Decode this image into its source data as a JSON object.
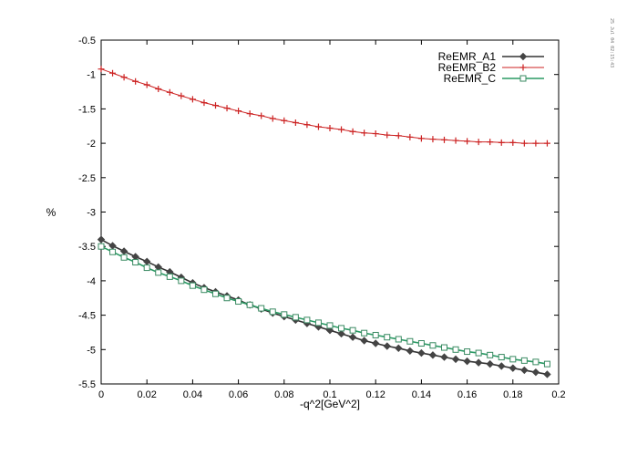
{
  "stamp": "25 Jul 04 02:15:43",
  "colors": {
    "A1_line": "#333333",
    "A1_marker": "#444444",
    "B2": "#cc2222",
    "C_line": "#2a9a64",
    "C_marker": "#3a8a62",
    "axis": "#000000"
  },
  "chart_data": {
    "type": "line",
    "title": "",
    "xlabel": "-q^2[GeV^2]",
    "ylabel": "%",
    "xlim": [
      0,
      0.2
    ],
    "ylim": [
      -5.5,
      -0.5
    ],
    "xticks": [
      "0",
      "0.02",
      "0.04",
      "0.06",
      "0.08",
      "0.1",
      "0.12",
      "0.14",
      "0.16",
      "0.18",
      "0.2"
    ],
    "yticks": [
      "-0.5",
      "-1",
      "-1.5",
      "-2",
      "-2.5",
      "-3",
      "-3.5",
      "-4",
      "-4.5",
      "-5",
      "-5.5"
    ],
    "grid": false,
    "legend_position": "top-right",
    "x": [
      0,
      0.005,
      0.01,
      0.015,
      0.02,
      0.025,
      0.03,
      0.035,
      0.04,
      0.045,
      0.05,
      0.055,
      0.06,
      0.065,
      0.07,
      0.075,
      0.08,
      0.085,
      0.09,
      0.095,
      0.1,
      0.105,
      0.11,
      0.115,
      0.12,
      0.125,
      0.13,
      0.135,
      0.14,
      0.145,
      0.15,
      0.155,
      0.16,
      0.165,
      0.17,
      0.175,
      0.18,
      0.185,
      0.19,
      0.195
    ],
    "series": [
      {
        "name": "ReEMR_A1",
        "marker": "diamond",
        "values": [
          -3.4,
          -3.49,
          -3.57,
          -3.65,
          -3.72,
          -3.8,
          -3.87,
          -3.95,
          -4.03,
          -4.1,
          -4.16,
          -4.22,
          -4.28,
          -4.35,
          -4.41,
          -4.47,
          -4.52,
          -4.57,
          -4.62,
          -4.67,
          -4.72,
          -4.77,
          -4.82,
          -4.87,
          -4.91,
          -4.95,
          -4.98,
          -5.02,
          -5.05,
          -5.08,
          -5.11,
          -5.14,
          -5.17,
          -5.19,
          -5.21,
          -5.24,
          -5.27,
          -5.3,
          -5.33,
          -5.36
        ]
      },
      {
        "name": "ReEMR_B2",
        "marker": "plus",
        "values": [
          -0.92,
          -0.98,
          -1.04,
          -1.1,
          -1.15,
          -1.21,
          -1.26,
          -1.31,
          -1.36,
          -1.41,
          -1.45,
          -1.49,
          -1.53,
          -1.57,
          -1.6,
          -1.64,
          -1.67,
          -1.7,
          -1.73,
          -1.76,
          -1.78,
          -1.8,
          -1.83,
          -1.85,
          -1.86,
          -1.88,
          -1.89,
          -1.91,
          -1.93,
          -1.94,
          -1.95,
          -1.96,
          -1.97,
          -1.98,
          -1.98,
          -1.99,
          -1.99,
          -2.0,
          -2.0,
          -2.0
        ]
      },
      {
        "name": "ReEMR_C",
        "marker": "square",
        "values": [
          -3.5,
          -3.58,
          -3.66,
          -3.73,
          -3.81,
          -3.88,
          -3.94,
          -4.0,
          -4.07,
          -4.13,
          -4.19,
          -4.25,
          -4.3,
          -4.35,
          -4.4,
          -4.45,
          -4.49,
          -4.53,
          -4.57,
          -4.61,
          -4.65,
          -4.69,
          -4.72,
          -4.76,
          -4.79,
          -4.82,
          -4.85,
          -4.88,
          -4.91,
          -4.94,
          -4.97,
          -5.0,
          -5.03,
          -5.05,
          -5.08,
          -5.11,
          -5.14,
          -5.16,
          -5.18,
          -5.21
        ]
      }
    ]
  }
}
